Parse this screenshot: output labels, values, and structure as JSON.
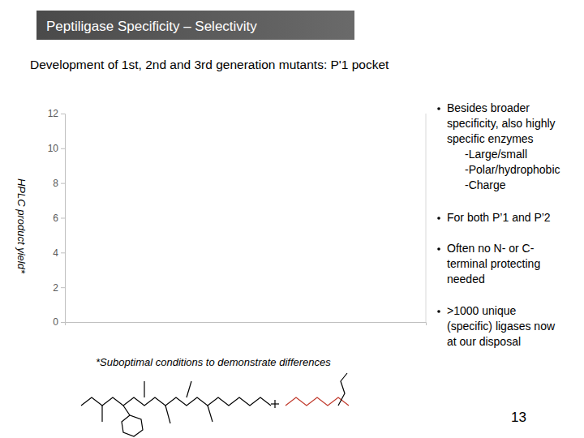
{
  "chart_data": {
    "type": "bar",
    "title": "Peptiligase Specificity – Selectivity",
    "subtitle": "Development of 1st, 2nd and 3rd generation mutants: P'1 pocket",
    "y_label": "HPLC product yield*",
    "categories": [],
    "values": [],
    "ylim": [
      0,
      12
    ],
    "yticks": [
      0,
      2,
      4,
      6,
      8,
      10,
      12
    ],
    "grid": false,
    "bullets": [
      [
        "Besides broader",
        "specificity, also highly",
        "specific enzymes",
        "-Large/small",
        "-Polar/hydrophobic",
        "-Charge"
      ],
      [
        "For both P’1 and P’2"
      ],
      [
        "Often no N- or C-",
        "terminal protecting",
        "needed"
      ],
      [
        ">1000 unique",
        "(specific) ligases now",
        "at our disposal"
      ]
    ],
    "footnote": "*Suboptimal conditions to demonstrate differences",
    "page_number": "13"
  }
}
